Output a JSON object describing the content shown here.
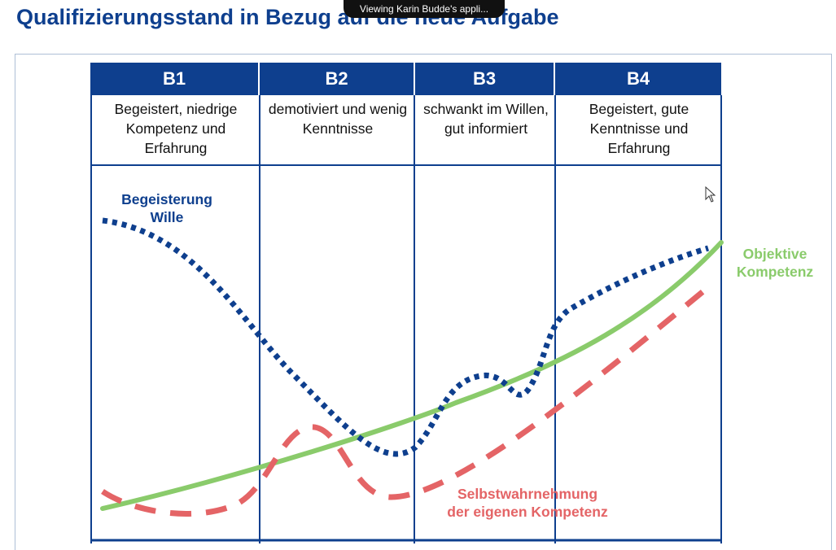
{
  "slide": {
    "title": "Qualifizierungsstand in Bezug auf die neue Aufgabe"
  },
  "meeting_banner": {
    "text": "Viewing Karin Budde's appli..."
  },
  "columns": [
    {
      "header": "B1",
      "description": "Begeistert, niedrige Kompetenz und Erfahrung"
    },
    {
      "header": "B2",
      "description": "demotiviert und wenig Kenntnisse"
    },
    {
      "header": "B3",
      "description": "schwankt im Willen, gut informiert"
    },
    {
      "header": "B4",
      "description": "Begeistert, gute Kenntnisse und Erfahrung"
    }
  ],
  "curve_labels": {
    "motivation_line1": "Begeisterung",
    "motivation_line2": "Wille",
    "objective_line1": "Objektive",
    "objective_line2": "Kompetenz",
    "self_line1": "Selbstwahrnehmung",
    "self_line2": "der eigenen Kompetenz"
  },
  "colors": {
    "header_blue": "#0e3f8e",
    "motivation_curve": "#0e3f8e",
    "objective_curve": "#8acb6b",
    "self_perception_curve": "#e46466"
  },
  "icons": {
    "cursor": "mouse-pointer-icon"
  }
}
